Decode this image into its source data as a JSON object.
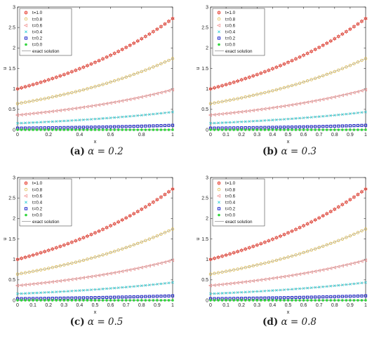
{
  "chart_data": [
    {
      "type": "scatter",
      "panel_label": "(a)",
      "caption_eq": "α = 0.2",
      "xlabel": "x",
      "ylabel": "u",
      "xlim": [
        0,
        1
      ],
      "ylim": [
        0,
        3
      ],
      "xticks": [
        "0",
        "0.2",
        "0.4",
        "0.6",
        "0.8",
        "1"
      ],
      "yticks": [
        "0",
        "0.5",
        "1",
        "1.5",
        "2",
        "2.5",
        "3"
      ],
      "x_points": 41,
      "legend_position": "top-left",
      "series": [
        {
          "name": "t=1.0",
          "marker": "hexagram",
          "color": "#e8483c",
          "values_at_x0_x1": [
            1.0,
            2.718
          ]
        },
        {
          "name": "t=0.8",
          "marker": "circle",
          "color": "#d9b33a",
          "values_at_x0_x1": [
            0.64,
            1.74
          ]
        },
        {
          "name": "t=0.6",
          "marker": "triangle-left",
          "color": "#f08a8a",
          "values_at_x0_x1": [
            0.36,
            0.98
          ]
        },
        {
          "name": "t=0.4",
          "marker": "x",
          "color": "#33cfd6",
          "values_at_x0_x1": [
            0.16,
            0.435
          ]
        },
        {
          "name": "t=0.2",
          "marker": "square",
          "color": "#1a22c8",
          "values_at_x0_x1": [
            0.04,
            0.109
          ]
        },
        {
          "name": "t=0.0",
          "marker": "filled-circle",
          "color": "#2fd53a",
          "values_at_x0_x1": [
            0.0,
            0.0
          ]
        }
      ],
      "exact_label": "exact solution",
      "exact_color": "#9a9a9a"
    },
    {
      "type": "scatter",
      "panel_label": "(b)",
      "caption_eq": "α = 0.3",
      "xlabel": "x",
      "ylabel": "u",
      "xlim": [
        0,
        1
      ],
      "ylim": [
        0,
        3
      ],
      "xticks": [
        "0",
        "0.1",
        "0.2",
        "0.3",
        "0.4",
        "0.5",
        "0.6",
        "0.7",
        "0.8",
        "0.9",
        "1"
      ],
      "yticks": [
        "0",
        "0.5",
        "1",
        "1.5",
        "2",
        "2.5",
        "3"
      ],
      "x_points": 41,
      "legend_position": "top-left",
      "series": [
        {
          "name": "t=1.0",
          "marker": "hexagram",
          "color": "#e8483c",
          "values_at_x0_x1": [
            1.0,
            2.718
          ]
        },
        {
          "name": "t=0.8",
          "marker": "circle",
          "color": "#d9b33a",
          "values_at_x0_x1": [
            0.64,
            1.74
          ]
        },
        {
          "name": "t=0.6",
          "marker": "triangle-left",
          "color": "#f08a8a",
          "values_at_x0_x1": [
            0.36,
            0.98
          ]
        },
        {
          "name": "t=0.4",
          "marker": "x",
          "color": "#33cfd6",
          "values_at_x0_x1": [
            0.16,
            0.435
          ]
        },
        {
          "name": "t=0.2",
          "marker": "square",
          "color": "#1a22c8",
          "values_at_x0_x1": [
            0.04,
            0.109
          ]
        },
        {
          "name": "t=0.0",
          "marker": "filled-circle",
          "color": "#2fd53a",
          "values_at_x0_x1": [
            0.0,
            0.0
          ]
        }
      ],
      "exact_label": "exact solution",
      "exact_color": "#9a9a9a"
    },
    {
      "type": "scatter",
      "panel_label": "(c)",
      "caption_eq": "α = 0.5",
      "xlabel": "x",
      "ylabel": "u",
      "xlim": [
        0,
        1
      ],
      "ylim": [
        0,
        3
      ],
      "xticks": [
        "0",
        "0.1",
        "0.2",
        "0.3",
        "0.4",
        "0.5",
        "0.6",
        "0.7",
        "0.8",
        "0.9",
        "1"
      ],
      "yticks": [
        "0",
        "0.5",
        "1",
        "1.5",
        "2",
        "2.5",
        "3"
      ],
      "x_points": 41,
      "legend_position": "top-left",
      "series": [
        {
          "name": "t=1.0",
          "marker": "hexagram",
          "color": "#e8483c",
          "values_at_x0_x1": [
            1.0,
            2.718
          ]
        },
        {
          "name": "t=0.8",
          "marker": "circle",
          "color": "#d9b33a",
          "values_at_x0_x1": [
            0.64,
            1.74
          ]
        },
        {
          "name": "t=0.6",
          "marker": "triangle-left",
          "color": "#f08a8a",
          "values_at_x0_x1": [
            0.36,
            0.98
          ]
        },
        {
          "name": "t=0.4",
          "marker": "x",
          "color": "#33cfd6",
          "values_at_x0_x1": [
            0.16,
            0.435
          ]
        },
        {
          "name": "t=0.2",
          "marker": "square",
          "color": "#1a22c8",
          "values_at_x0_x1": [
            0.04,
            0.109
          ]
        },
        {
          "name": "t=0.0",
          "marker": "filled-circle",
          "color": "#2fd53a",
          "values_at_x0_x1": [
            0.0,
            0.0
          ]
        }
      ],
      "exact_label": "exact solution",
      "exact_color": "#9a9a9a"
    },
    {
      "type": "scatter",
      "panel_label": "(d)",
      "caption_eq": "α = 0.8",
      "xlabel": "x",
      "ylabel": "u",
      "xlim": [
        0,
        1
      ],
      "ylim": [
        0,
        3
      ],
      "xticks": [
        "0",
        "0.1",
        "0.2",
        "0.3",
        "0.4",
        "0.5",
        "0.6",
        "0.7",
        "0.8",
        "0.9",
        "1"
      ],
      "yticks": [
        "0",
        "0.5",
        "1",
        "1.5",
        "2",
        "2.5",
        "3"
      ],
      "x_points": 41,
      "legend_position": "top-left",
      "series": [
        {
          "name": "t=1.0",
          "marker": "hexagram",
          "color": "#e8483c",
          "values_at_x0_x1": [
            1.0,
            2.718
          ]
        },
        {
          "name": "t=0.8",
          "marker": "circle",
          "color": "#d9b33a",
          "values_at_x0_x1": [
            0.64,
            1.74
          ]
        },
        {
          "name": "t=0.6",
          "marker": "triangle-left",
          "color": "#f08a8a",
          "values_at_x0_x1": [
            0.36,
            0.98
          ]
        },
        {
          "name": "t=0.4",
          "marker": "x",
          "color": "#33cfd6",
          "values_at_x0_x1": [
            0.16,
            0.435
          ]
        },
        {
          "name": "t=0.2",
          "marker": "square",
          "color": "#1a22c8",
          "values_at_x0_x1": [
            0.04,
            0.109
          ]
        },
        {
          "name": "t=0.0",
          "marker": "filled-circle",
          "color": "#2fd53a",
          "values_at_x0_x1": [
            0.0,
            0.0
          ]
        }
      ],
      "exact_label": "exact solution",
      "exact_color": "#9a9a9a"
    }
  ]
}
